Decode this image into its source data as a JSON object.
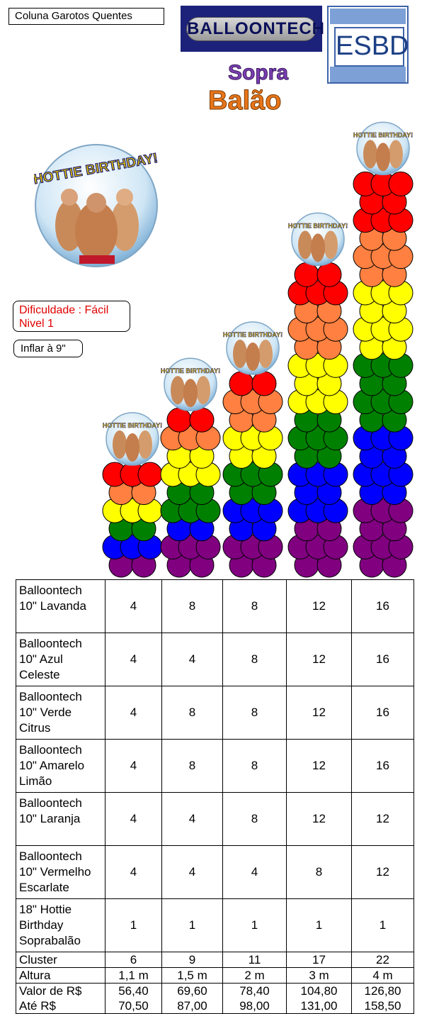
{
  "title": "Coluna Garotos Quentes",
  "logos": {
    "balloontech": "BALLOONTECH",
    "esbd": "ESBD",
    "sopra_balao_line1": "Sopra",
    "sopra_balao_line2": "Balão"
  },
  "balloon_caption": "HOTTIE BIRTHDAY!",
  "difficulty": {
    "line1": "Dificuldade : Fácil",
    "line2": "Nivel 1"
  },
  "inflate": "Inflar à 9\"",
  "colors": {
    "red": "#ff0000",
    "orange": "#ff8040",
    "yellow": "#ffff00",
    "green": "#008000",
    "blue": "#0000ff",
    "purple": "#800080",
    "logo_navy": "#1c2179",
    "esbd_blue": "#3d63a8",
    "difficulty_text": "#e00000"
  },
  "columns": [
    {
      "layers": [
        "purple",
        "blue",
        "green",
        "yellow",
        "orange",
        "red"
      ]
    },
    {
      "layers": [
        "purple",
        "purple",
        "blue",
        "green",
        "green",
        "yellow",
        "yellow",
        "orange",
        "red"
      ]
    },
    {
      "layers": [
        "purple",
        "purple",
        "blue",
        "blue",
        "green",
        "green",
        "yellow",
        "yellow",
        "orange",
        "orange",
        "red"
      ]
    },
    {
      "layers": [
        "purple",
        "purple",
        "purple",
        "blue",
        "blue",
        "blue",
        "green",
        "green",
        "green",
        "yellow",
        "yellow",
        "yellow",
        "orange",
        "orange",
        "orange",
        "red",
        "red"
      ]
    },
    {
      "layers": [
        "purple",
        "purple",
        "purple",
        "purple",
        "blue",
        "blue",
        "blue",
        "blue",
        "green",
        "green",
        "green",
        "green",
        "yellow",
        "yellow",
        "yellow",
        "yellow",
        "orange",
        "orange",
        "orange",
        "red",
        "red",
        "red"
      ]
    }
  ],
  "table": {
    "rows": [
      {
        "label": [
          "Balloontech",
          "10\" Lavanda"
        ],
        "values": [
          "4",
          "8",
          "8",
          "12",
          "16"
        ]
      },
      {
        "label": [
          "Balloontech",
          "10\" Azul",
          "Celeste"
        ],
        "values": [
          "4",
          "4",
          "8",
          "12",
          "16"
        ]
      },
      {
        "label": [
          "Balloontech",
          "10\" Verde",
          "Citrus"
        ],
        "values": [
          "4",
          "8",
          "8",
          "12",
          "16"
        ]
      },
      {
        "label": [
          "Balloontech",
          "10\" Amarelo",
          "Limão"
        ],
        "values": [
          "4",
          "8",
          "8",
          "12",
          "16"
        ]
      },
      {
        "label": [
          "Balloontech",
          "10\" Laranja"
        ],
        "values": [
          "4",
          "4",
          "8",
          "12",
          "12"
        ]
      },
      {
        "label": [
          "Balloontech",
          "10\" Vermelho",
          "Escarlate"
        ],
        "values": [
          "4",
          "4",
          "4",
          "8",
          "12"
        ]
      },
      {
        "label": [
          "18\" Hottie",
          "Birthday",
          "Soprabalão"
        ],
        "values": [
          "1",
          "1",
          "1",
          "1",
          "1"
        ]
      }
    ],
    "cluster": {
      "label": "Cluster",
      "values": [
        "6",
        "9",
        "11",
        "17",
        "22"
      ]
    },
    "altura": {
      "label": "Altura",
      "values": [
        "1,1 m",
        "1,5 m",
        "2 m",
        "3 m",
        "4 m"
      ]
    },
    "price": {
      "label1": "Valor de  R$",
      "label2": "Até R$",
      "from": [
        "56,40",
        "69,60",
        "78,40",
        "104,80",
        "126,80"
      ],
      "to": [
        "70,50",
        "87,00",
        "98,00",
        "131,00",
        "158,50"
      ]
    }
  }
}
